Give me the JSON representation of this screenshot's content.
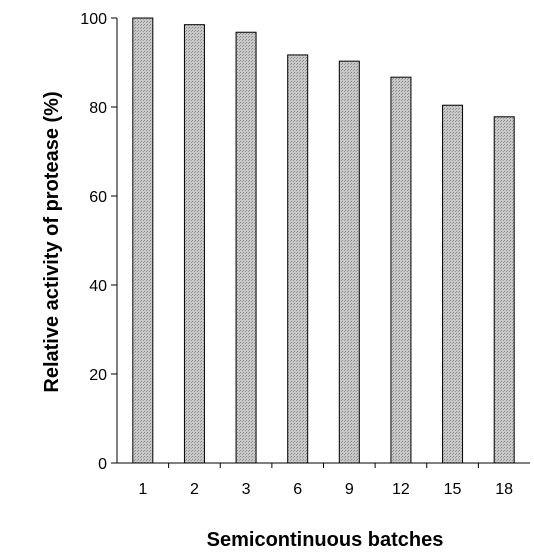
{
  "chart_data": {
    "type": "bar",
    "title": "",
    "xlabel": "Semicontinuous batches",
    "ylabel": "Relative activity of protease (%)",
    "categories": [
      "1",
      "2",
      "3",
      "6",
      "9",
      "12",
      "15",
      "18"
    ],
    "values": [
      100,
      98.5,
      96.8,
      91.7,
      90.3,
      86.7,
      80.4,
      77.8
    ],
    "ylim": [
      0,
      100
    ],
    "yticks": [
      "0",
      "20",
      "40",
      "60",
      "80",
      "100"
    ],
    "grid": false,
    "legend": "none",
    "bar_color": "#b9b9b9",
    "bar_stroke": "#000000"
  }
}
